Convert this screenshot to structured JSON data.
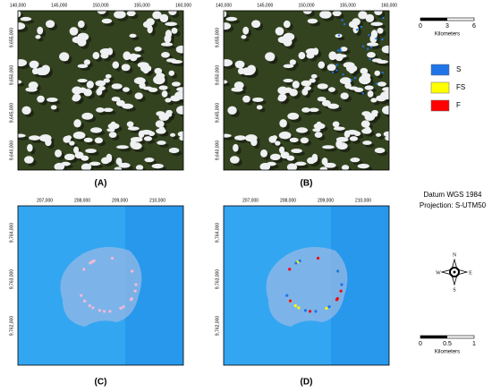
{
  "panels": [
    {
      "label": "(A)",
      "xticks": [
        "140,000",
        "145,000",
        "150,000",
        "155,000",
        "160,000"
      ],
      "yticks": [
        "9,655,000",
        "9,650,000",
        "9,645,000",
        "9,640,000"
      ]
    },
    {
      "label": "(B)",
      "xticks": [
        "140,000",
        "145,000",
        "150,000",
        "155,000",
        "160,000"
      ],
      "yticks": [
        "9,655,000",
        "9,650,000",
        "9,645,000",
        "9,640,000"
      ]
    },
    {
      "label": "(C)",
      "xticks": [
        "207,000",
        "208,000",
        "209,000",
        "210,000"
      ],
      "yticks": [
        "9,764,000",
        "9,763,000",
        "9,762,000"
      ]
    },
    {
      "label": "(D)",
      "xticks": [
        "207,000",
        "208,000",
        "209,000",
        "210,000"
      ],
      "yticks": [
        "9,764,000",
        "9,763,000",
        "9,762,000"
      ]
    }
  ],
  "legend": {
    "items": [
      {
        "label": "S",
        "color": "#1f74e8"
      },
      {
        "label": "FS",
        "color": "#ffff00"
      },
      {
        "label": "F",
        "color": "#ff0000"
      }
    ]
  },
  "scale_bars": [
    {
      "ticks": [
        "0",
        "3",
        "6"
      ],
      "unit": "Kilometers"
    },
    {
      "ticks": [
        "0",
        "0.5",
        "1"
      ],
      "unit": "Kilometers"
    }
  ],
  "datum": "Datum WGS 1984",
  "projection": "Projection: S-UTM50",
  "compass": {
    "n": "N",
    "s": "S",
    "e": "E",
    "w": "W"
  }
}
